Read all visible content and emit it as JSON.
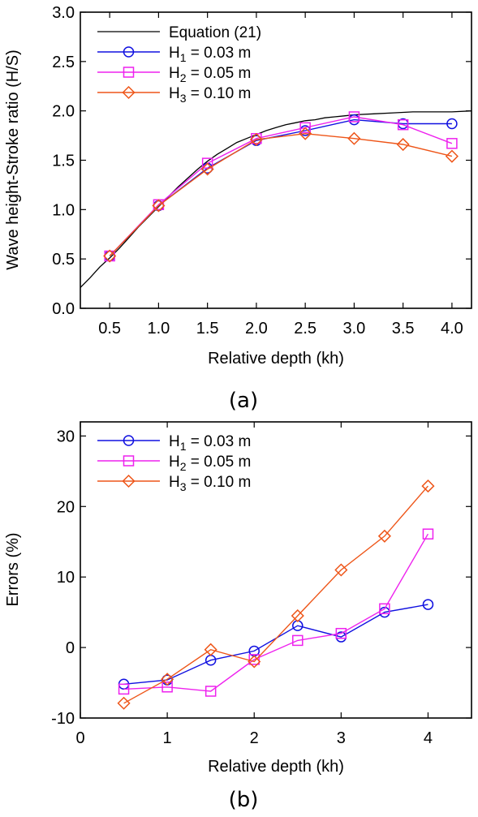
{
  "chart_data": [
    {
      "type": "line",
      "caption": "(a)",
      "xlabel": "Relative depth (kh)",
      "ylabel": "Wave height-Stroke ratio (H/S)",
      "xlim": [
        0.2,
        4.2
      ],
      "ylim": [
        0,
        3.0
      ],
      "xticks": [
        0.5,
        1.0,
        1.5,
        2.0,
        2.5,
        3.0,
        3.5,
        4.0
      ],
      "xtick_labels": [
        "0.5",
        "1.0",
        "1.5",
        "2.0",
        "2.5",
        "3.0",
        "3.5",
        "4.0"
      ],
      "yticks": [
        0,
        0.5,
        1.0,
        1.5,
        2.0,
        2.5,
        3.0
      ],
      "ytick_labels": [
        "0.0",
        "0.5",
        "1.0",
        "1.5",
        "2.0",
        "2.5",
        "3.0"
      ],
      "legend_position": "top-left",
      "curve": {
        "name": "Equation (21)",
        "color": "#000000",
        "x": [
          0.2,
          0.3,
          0.4,
          0.5,
          0.6,
          0.7,
          0.8,
          0.9,
          1.0,
          1.1,
          1.2,
          1.3,
          1.4,
          1.5,
          1.6,
          1.7,
          1.8,
          1.9,
          2.0,
          2.1,
          2.2,
          2.3,
          2.4,
          2.5,
          2.6,
          2.7,
          2.8,
          2.9,
          3.0,
          3.2,
          3.4,
          3.6,
          3.8,
          4.0,
          4.2
        ],
        "y": [
          0.21,
          0.31,
          0.42,
          0.51,
          0.61,
          0.72,
          0.83,
          0.93,
          1.03,
          1.13,
          1.23,
          1.32,
          1.41,
          1.49,
          1.56,
          1.62,
          1.68,
          1.72,
          1.76,
          1.8,
          1.83,
          1.86,
          1.88,
          1.9,
          1.91,
          1.93,
          1.94,
          1.95,
          1.96,
          1.97,
          1.98,
          1.99,
          1.99,
          1.99,
          2.0
        ]
      },
      "series": [
        {
          "name_main": "H",
          "name_sub": "1",
          "name_rest": " = 0.03 m",
          "color": "#1010e0",
          "marker": "circle",
          "x": [
            0.5,
            1.0,
            1.5,
            2.0,
            2.5,
            3.0,
            3.5,
            4.0
          ],
          "y": [
            0.53,
            1.04,
            1.42,
            1.7,
            1.8,
            1.91,
            1.87,
            1.87
          ]
        },
        {
          "name_main": "H",
          "name_sub": "2",
          "name_rest": " = 0.05 m",
          "color": "#ee22ee",
          "marker": "square",
          "x": [
            0.5,
            1.0,
            1.5,
            2.0,
            2.5,
            3.0,
            3.5,
            4.0
          ],
          "y": [
            0.53,
            1.05,
            1.47,
            1.72,
            1.83,
            1.94,
            1.86,
            1.67
          ]
        },
        {
          "name_main": "H",
          "name_sub": "3",
          "name_rest": " = 0.10 m",
          "color": "#ee5518",
          "marker": "diamond",
          "x": [
            0.5,
            1.0,
            1.5,
            2.0,
            2.5,
            3.0,
            3.5,
            4.0
          ],
          "y": [
            0.53,
            1.04,
            1.41,
            1.71,
            1.77,
            1.72,
            1.66,
            1.54
          ]
        }
      ]
    },
    {
      "type": "line",
      "caption": "(b)",
      "xlabel": "Relative depth (kh)",
      "ylabel": "Errors (%)",
      "xlim": [
        0,
        4.5
      ],
      "ylim": [
        -10,
        32
      ],
      "xticks": [
        0,
        1,
        2,
        3,
        4
      ],
      "xtick_labels": [
        "0",
        "1",
        "2",
        "3",
        "4"
      ],
      "yticks": [
        -10,
        0,
        10,
        20,
        30
      ],
      "ytick_labels": [
        "-10",
        "0",
        "10",
        "20",
        "30"
      ],
      "legend_position": "top-left",
      "series": [
        {
          "name_main": "H",
          "name_sub": "1",
          "name_rest": " = 0.03 m",
          "color": "#1010e0",
          "marker": "circle",
          "x": [
            0.5,
            1.0,
            1.5,
            2.0,
            2.5,
            3.0,
            3.5,
            4.0
          ],
          "y": [
            -5.2,
            -4.6,
            -1.8,
            -0.5,
            3.1,
            1.5,
            5.0,
            6.1
          ]
        },
        {
          "name_main": "H",
          "name_sub": "2",
          "name_rest": " = 0.05 m",
          "color": "#ee22ee",
          "marker": "square",
          "x": [
            0.5,
            1.0,
            1.5,
            2.0,
            2.5,
            3.0,
            3.5,
            4.0
          ],
          "y": [
            -5.9,
            -5.6,
            -6.2,
            -1.7,
            1.0,
            2.0,
            5.5,
            16.1
          ]
        },
        {
          "name_main": "H",
          "name_sub": "3",
          "name_rest": " = 0.10 m",
          "color": "#ee5518",
          "marker": "diamond",
          "x": [
            0.5,
            1.0,
            1.5,
            2.0,
            2.5,
            3.0,
            3.5,
            4.0
          ],
          "y": [
            -7.9,
            -4.5,
            -0.3,
            -2.0,
            4.5,
            11.0,
            15.8,
            22.9
          ]
        }
      ]
    }
  ]
}
